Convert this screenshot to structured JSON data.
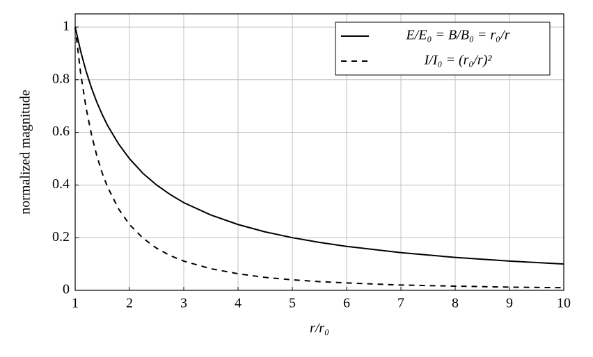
{
  "chart_data": {
    "type": "line",
    "x_label": "r/r₀",
    "y_label": "normalized magnitude",
    "x": [
      1,
      1.1,
      1.2,
      1.3,
      1.4,
      1.5,
      1.6,
      1.8,
      2,
      2.25,
      2.5,
      2.75,
      3,
      3.5,
      4,
      4.5,
      5,
      5.5,
      6,
      7,
      8,
      9,
      10
    ],
    "series": [
      {
        "name": "E/E₀ = B/B₀ = r₀/r",
        "color": "#000000",
        "dash": "solid",
        "values": [
          1,
          0.909,
          0.833,
          0.769,
          0.714,
          0.667,
          0.625,
          0.556,
          0.5,
          0.444,
          0.4,
          0.364,
          0.333,
          0.286,
          0.25,
          0.222,
          0.2,
          0.182,
          0.167,
          0.143,
          0.125,
          0.111,
          0.1
        ]
      },
      {
        "name": "I/I₀ = (r₀/r)²",
        "color": "#000000",
        "dash": "dashed",
        "values": [
          1,
          0.826,
          0.694,
          0.592,
          0.51,
          0.444,
          0.391,
          0.309,
          0.25,
          0.198,
          0.16,
          0.132,
          0.111,
          0.082,
          0.063,
          0.049,
          0.04,
          0.033,
          0.028,
          0.02,
          0.016,
          0.012,
          0.01
        ]
      }
    ],
    "xlim": [
      1,
      10
    ],
    "xticks": [
      1,
      2,
      3,
      4,
      5,
      6,
      7,
      8,
      9,
      10
    ],
    "ylim": [
      0,
      1.05
    ],
    "yticks": [
      0,
      0.2,
      0.4,
      0.6,
      0.8,
      1
    ],
    "grid": true,
    "legend": "upper-right"
  }
}
